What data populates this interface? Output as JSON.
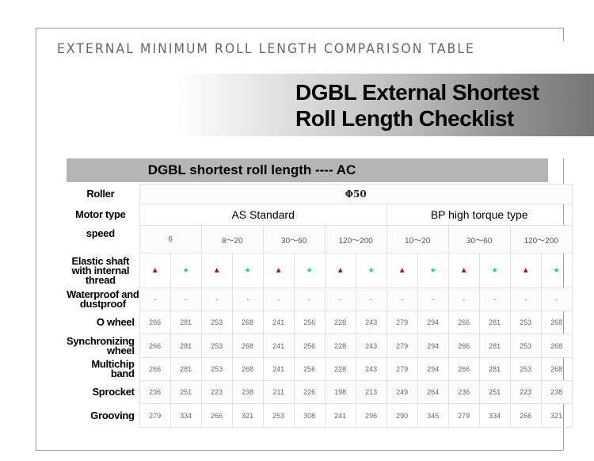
{
  "eyebrow": "EXTERNAL MINIMUM ROLL LENGTH COMPARISON TABLE",
  "title_line1": "DGBL External Shortest",
  "title_line2": "Roll Length Checklist",
  "subtitle": "DGBL shortest roll length ---- AC",
  "roller": {
    "label": "Roller",
    "value": "Φ50"
  },
  "motor_type": {
    "label": "Motor type",
    "groups": [
      "AS Standard",
      "BP high torque type"
    ]
  },
  "speed": {
    "label": "speed",
    "values": [
      "6",
      "8～20",
      "30～60",
      "120～200",
      "10～20",
      "30～60",
      "120～200"
    ]
  },
  "legend_icons": {
    "triangle": "red-triangle-icon",
    "star": "green-star-icon",
    "triangle_color": "#e00000",
    "star_color": "#1fd27a"
  },
  "rows": [
    {
      "label": "Elastic shaft with internal thread",
      "values": [
        "▲",
        "★",
        "▲",
        "★",
        "▲",
        "★",
        "▲",
        "★",
        "▲",
        "★",
        "▲",
        "★",
        "▲",
        "★"
      ]
    },
    {
      "label": "Waterproof and dustproof",
      "values": [
        "-",
        "-",
        "-",
        "-",
        "-",
        "-",
        "-",
        "-",
        "-",
        "-",
        "-",
        "-",
        "-",
        "-"
      ]
    },
    {
      "label": "O wheel",
      "values": [
        "266",
        "281",
        "253",
        "268",
        "241",
        "256",
        "228",
        "243",
        "279",
        "294",
        "266",
        "281",
        "253",
        "268"
      ]
    },
    {
      "label": "Synchronizing wheel",
      "values": [
        "266",
        "281",
        "253",
        "268",
        "241",
        "256",
        "228",
        "243",
        "279",
        "294",
        "266",
        "281",
        "253",
        "268"
      ]
    },
    {
      "label": "Multichip band",
      "values": [
        "266",
        "281",
        "253",
        "268",
        "241",
        "256",
        "228",
        "243",
        "279",
        "294",
        "266",
        "281",
        "253",
        "268"
      ]
    },
    {
      "label": "Sprocket",
      "values": [
        "236",
        "251",
        "223",
        "238",
        "211",
        "226",
        "198",
        "213",
        "249",
        "264",
        "236",
        "251",
        "223",
        "238"
      ]
    },
    {
      "label": "Grooving",
      "values": [
        "279",
        "334",
        "266",
        "321",
        "253",
        "308",
        "241",
        "296",
        "290",
        "345",
        "279",
        "334",
        "266",
        "321"
      ]
    }
  ]
}
